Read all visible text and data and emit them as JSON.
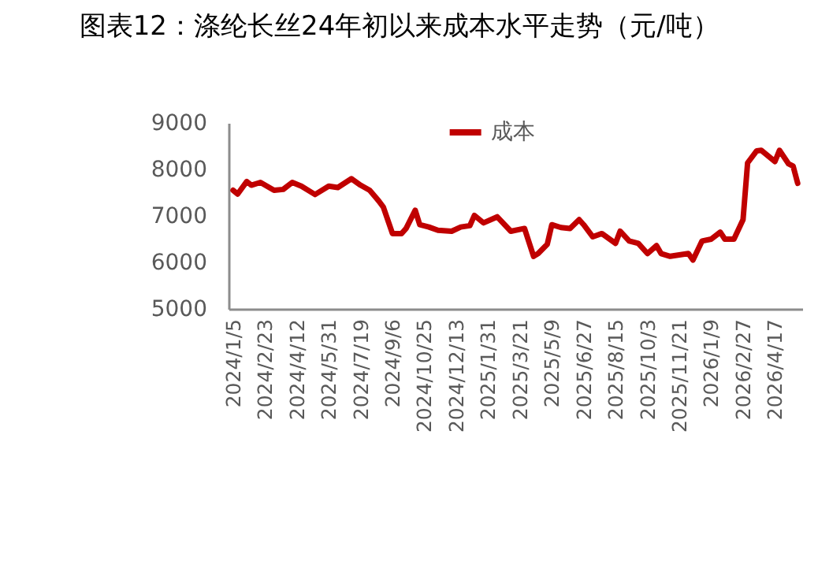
{
  "chart_data": {
    "type": "line",
    "title": "图表12：涤纶长丝24年初以来成本水平走势（元/吨）",
    "x": [
      "2024-01-05",
      "2024-01-12",
      "2024-01-26",
      "2024-02-02",
      "2024-02-16",
      "2024-03-08",
      "2024-03-22",
      "2024-04-05",
      "2024-04-19",
      "2024-05-10",
      "2024-05-31",
      "2024-06-14",
      "2024-07-05",
      "2024-07-19",
      "2024-08-02",
      "2024-08-16",
      "2024-08-23",
      "2024-09-06",
      "2024-09-20",
      "2024-09-27",
      "2024-10-11",
      "2024-10-18",
      "2024-11-01",
      "2024-11-15",
      "2024-12-06",
      "2024-12-20",
      "2025-01-03",
      "2025-01-10",
      "2025-01-24",
      "2025-02-14",
      "2025-03-07",
      "2025-03-28",
      "2025-04-11",
      "2025-04-18",
      "2025-05-02",
      "2025-05-09",
      "2025-05-23",
      "2025-06-06",
      "2025-06-20",
      "2025-06-27",
      "2025-07-11",
      "2025-07-25",
      "2025-08-15",
      "2025-08-22",
      "2025-09-05",
      "2025-09-19",
      "2025-10-03",
      "2025-10-17",
      "2025-10-24",
      "2025-11-07",
      "2025-12-05",
      "2025-12-12",
      "2025-12-26",
      "2026-01-09",
      "2026-01-23",
      "2026-01-30",
      "2026-02-13",
      "2026-02-27",
      "2026-03-06",
      "2026-03-20",
      "2026-03-27",
      "2026-04-17",
      "2026-04-24",
      "2026-05-08",
      "2026-05-15",
      "2026-05-22"
    ],
    "series": [
      {
        "name": "成本",
        "color": "#c00000",
        "values": [
          7550,
          7470,
          7740,
          7660,
          7720,
          7550,
          7570,
          7720,
          7640,
          7460,
          7640,
          7610,
          7800,
          7660,
          7550,
          7320,
          7190,
          6620,
          6620,
          6730,
          7120,
          6810,
          6760,
          6690,
          6670,
          6760,
          6790,
          7010,
          6850,
          6980,
          6670,
          6730,
          6130,
          6190,
          6390,
          6810,
          6750,
          6730,
          6920,
          6810,
          6550,
          6620,
          6410,
          6670,
          6460,
          6410,
          6190,
          6360,
          6190,
          6130,
          6190,
          6050,
          6460,
          6500,
          6650,
          6500,
          6500,
          6920,
          8140,
          8400,
          8410,
          8170,
          8410,
          8120,
          8070,
          7700
        ]
      }
    ],
    "xlim": [
      "2023-12-29",
      "2026-05-29"
    ],
    "xticks": [
      {
        "value": "2024-01-05",
        "label": "2024/1/5"
      },
      {
        "value": "2024-02-23",
        "label": "2024/2/23"
      },
      {
        "value": "2024-04-12",
        "label": "2024/4/12"
      },
      {
        "value": "2024-05-31",
        "label": "2024/5/31"
      },
      {
        "value": "2024-07-19",
        "label": "2024/7/19"
      },
      {
        "value": "2024-09-06",
        "label": "2024/9/6"
      },
      {
        "value": "2024-10-25",
        "label": "2024/10/25"
      },
      {
        "value": "2024-12-13",
        "label": "2024/12/13"
      },
      {
        "value": "2025-01-31",
        "label": "2025/1/31"
      },
      {
        "value": "2025-03-21",
        "label": "2025/3/21"
      },
      {
        "value": "2025-05-09",
        "label": "2025/5/9"
      },
      {
        "value": "2025-06-27",
        "label": "2025/6/27"
      },
      {
        "value": "2025-08-15",
        "label": "2025/8/15"
      },
      {
        "value": "2025-10-03",
        "label": "2025/10/3"
      },
      {
        "value": "2025-11-21",
        "label": "2025/11/21"
      },
      {
        "value": "2026-01-09",
        "label": "2026/1/9"
      },
      {
        "value": "2026-02-27",
        "label": "2026/2/27"
      },
      {
        "value": "2026-04-17",
        "label": "2026/4/17"
      }
    ],
    "ylim": [
      5000,
      9000
    ],
    "yticks": [
      5000,
      6000,
      7000,
      8000,
      9000
    ],
    "grid": false,
    "legend": "top",
    "marker": "none",
    "line_style": "solid"
  }
}
